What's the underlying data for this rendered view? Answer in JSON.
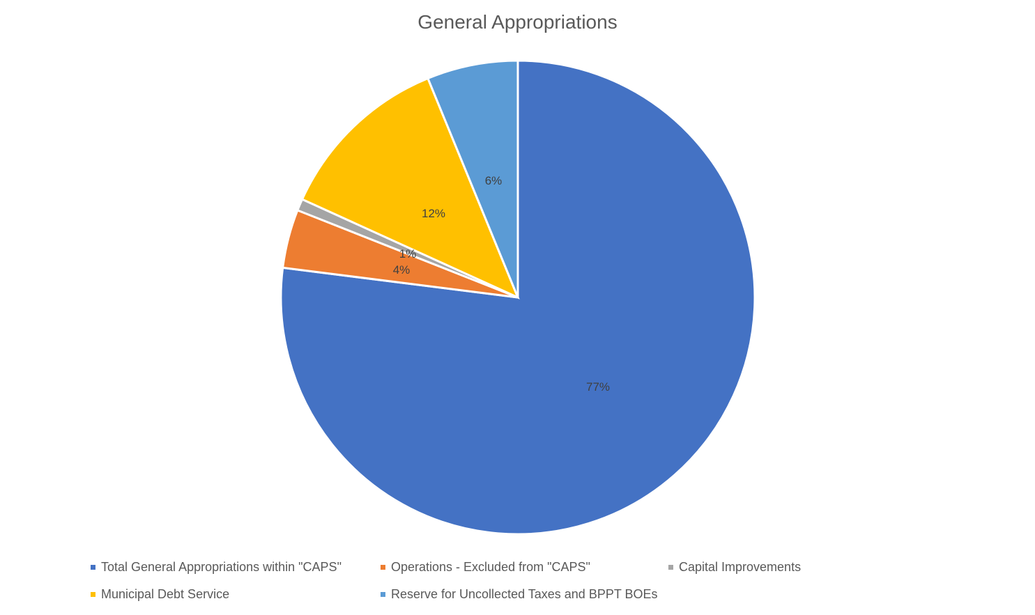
{
  "chart_data": {
    "type": "pie",
    "title": "General Appropriations",
    "categories": [
      "Total General Appropriations within \"CAPS\"",
      "Operations - Excluded from \"CAPS\"",
      "Capital Improvements",
      "Municipal Debt Service",
      "Reserve for Uncollected Taxes and BPPT BOEs"
    ],
    "values": [
      77,
      4,
      0.8,
      12,
      6.2
    ],
    "labels": [
      "77%",
      "4%",
      "1%",
      "12%",
      "6%"
    ],
    "colors": [
      "#4472C4",
      "#ED7D31",
      "#A5A5A5",
      "#FFC000",
      "#5B9BD5"
    ],
    "start_angle": "12 o'clock, clockwise",
    "legend_position": "bottom"
  },
  "legend": [
    {
      "label": "Total General Appropriations within \"CAPS\"",
      "color": "#4472C4"
    },
    {
      "label": "Operations - Excluded from \"CAPS\"",
      "color": "#ED7D31"
    },
    {
      "label": "Capital Improvements",
      "color": "#A5A5A5"
    },
    {
      "label": "Municipal Debt Service",
      "color": "#FFC000"
    },
    {
      "label": "Reserve for Uncollected Taxes and BPPT BOEs",
      "color": "#5B9BD5"
    }
  ]
}
